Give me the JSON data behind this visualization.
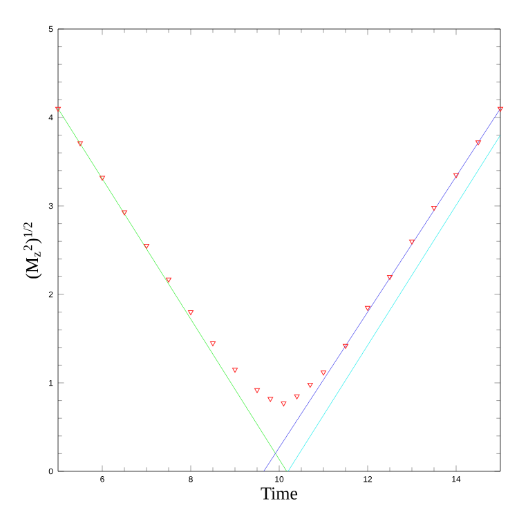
{
  "chart_data": {
    "type": "line",
    "xlabel": "Time",
    "ylabel": "(M$_{z}$$^{2}$)$^{1/2}$",
    "xlim": [
      5,
      15
    ],
    "ylim": [
      0,
      5
    ],
    "xticks": [
      6,
      8,
      10,
      12,
      14
    ],
    "yticks": [
      0,
      1,
      2,
      3,
      4,
      5
    ],
    "grid": false,
    "series": [
      {
        "color": "#33ee33",
        "x": [
          5,
          10.17
        ],
        "values": [
          4.1,
          0
        ]
      },
      {
        "color": "#4444ee",
        "x": [
          9.65,
          15
        ],
        "values": [
          0,
          4.1
        ]
      },
      {
        "color": "#22eeee",
        "x": [
          10.2,
          15
        ],
        "values": [
          0,
          3.8
        ]
      },
      {
        "type": "scatter",
        "color": "#ff2222",
        "marker": "triangle",
        "x": [
          5,
          5.5,
          6,
          6.5,
          7,
          7.5,
          8,
          8.5,
          9,
          9.5,
          9.8,
          10.1,
          10.4,
          10.7,
          11,
          11.5,
          12,
          12.5,
          13,
          13.5,
          14,
          14.5,
          15
        ],
        "values": [
          4.1,
          3.71,
          3.32,
          2.93,
          2.55,
          2.17,
          1.8,
          1.45,
          1.15,
          0.92,
          0.82,
          0.77,
          0.85,
          0.98,
          1.12,
          1.42,
          1.85,
          2.2,
          2.6,
          2.98,
          3.35,
          3.72,
          4.1
        ]
      }
    ]
  }
}
